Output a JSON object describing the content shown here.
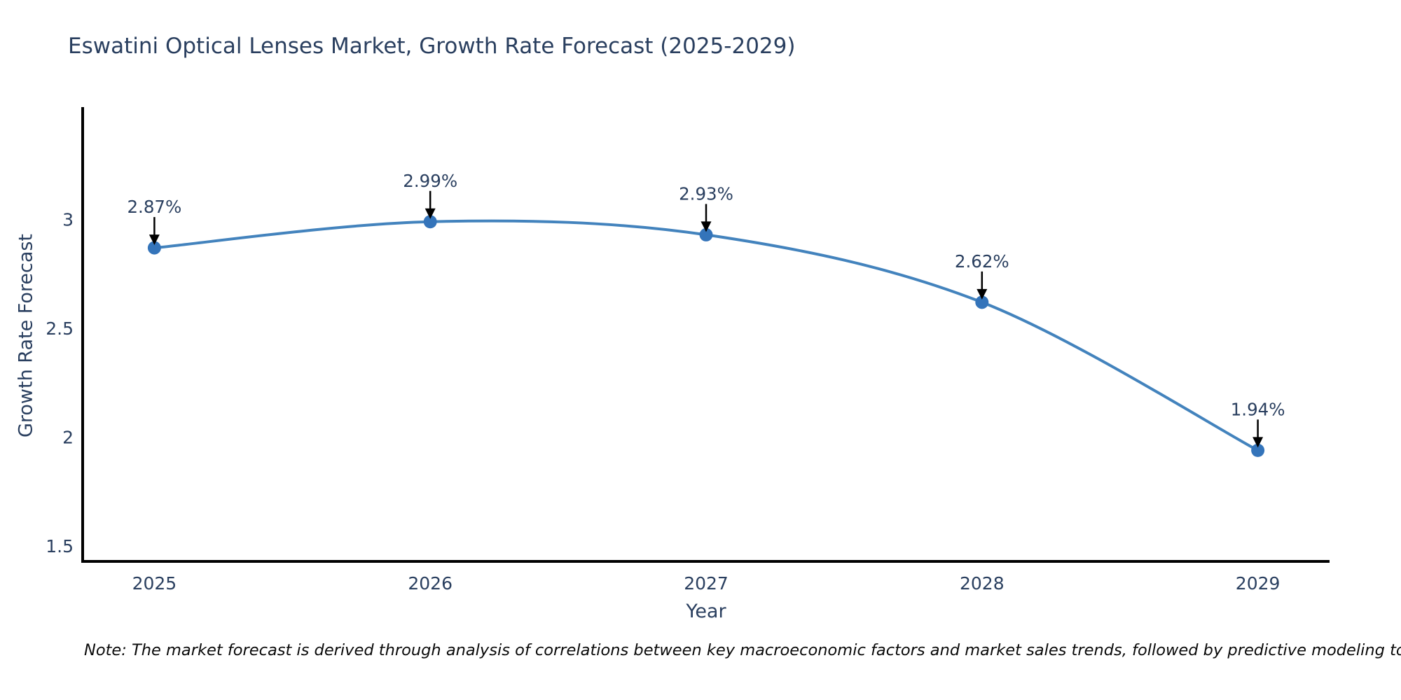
{
  "page": {
    "note": "Note: The market forecast is derived through analysis of correlations between key macroeconomic factors and market sales trends, followed by predictive modeling to project future sales"
  },
  "chart_data": {
    "type": "line",
    "title": "Eswatini Optical Lenses Market, Growth Rate Forecast (2025-2029)",
    "xlabel": "Year",
    "ylabel": "Growth Rate Forecast",
    "x": [
      2025,
      2026,
      2027,
      2028,
      2029
    ],
    "y": [
      2.87,
      2.99,
      2.93,
      2.62,
      1.94
    ],
    "point_labels": [
      "2.87%",
      "2.99%",
      "2.93%",
      "2.62%",
      "1.94%"
    ],
    "x_tick_labels": [
      "2025",
      "2026",
      "2027",
      "2028",
      "2029"
    ],
    "y_ticks": [
      1.5,
      2,
      2.5,
      3
    ],
    "y_tick_labels": [
      "1.5",
      "2",
      "2.5",
      "3"
    ],
    "xlim": [
      2024.74,
      2029.26
    ],
    "ylim": [
      1.43,
      3.51
    ],
    "line_shape": "spline",
    "grid": false,
    "legend": "none",
    "colors": {
      "line": "#4383bd",
      "marker": "#3474ba",
      "arrow": "#000000",
      "annotation_text": "#2a3f5f",
      "tick_text": "#2a3f5f",
      "axis_line": "#000000",
      "title_text": "#2a3f5f"
    }
  }
}
